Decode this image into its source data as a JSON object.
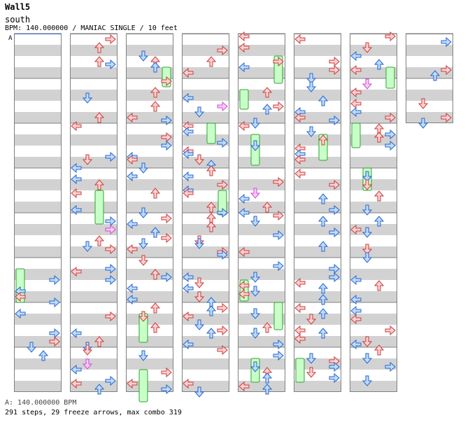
{
  "header": {
    "title": "Wall5",
    "artist": "south",
    "info": "BPM: 140.000000 / MANIAC SINGLE / 10 feet"
  },
  "marker_label": "A",
  "footer": {
    "bpm_line": "A: 140.000000 BPM",
    "stats_line": "291 steps, 29 freeze arrows, max combo 319"
  },
  "colors": {
    "arrow_red": "#ffd2d2",
    "arrow_red_stroke": "#c83c3c",
    "arrow_blue": "#bedcff",
    "arrow_blue_stroke": "#2864c8",
    "arrow_pink": "#ffc8ff",
    "arrow_pink_stroke": "#c850c8",
    "freeze_fill": "#c8ffc8",
    "freeze_stroke": "#32a032",
    "stripe": "#d2d2d2"
  },
  "chart_data": {
    "type": "step-chart",
    "columns": 8,
    "measures_per_column": 8,
    "lanes": [
      "left",
      "down",
      "up",
      "right"
    ],
    "steps": 291,
    "freeze_arrows": 29,
    "max_combo": 319
  }
}
